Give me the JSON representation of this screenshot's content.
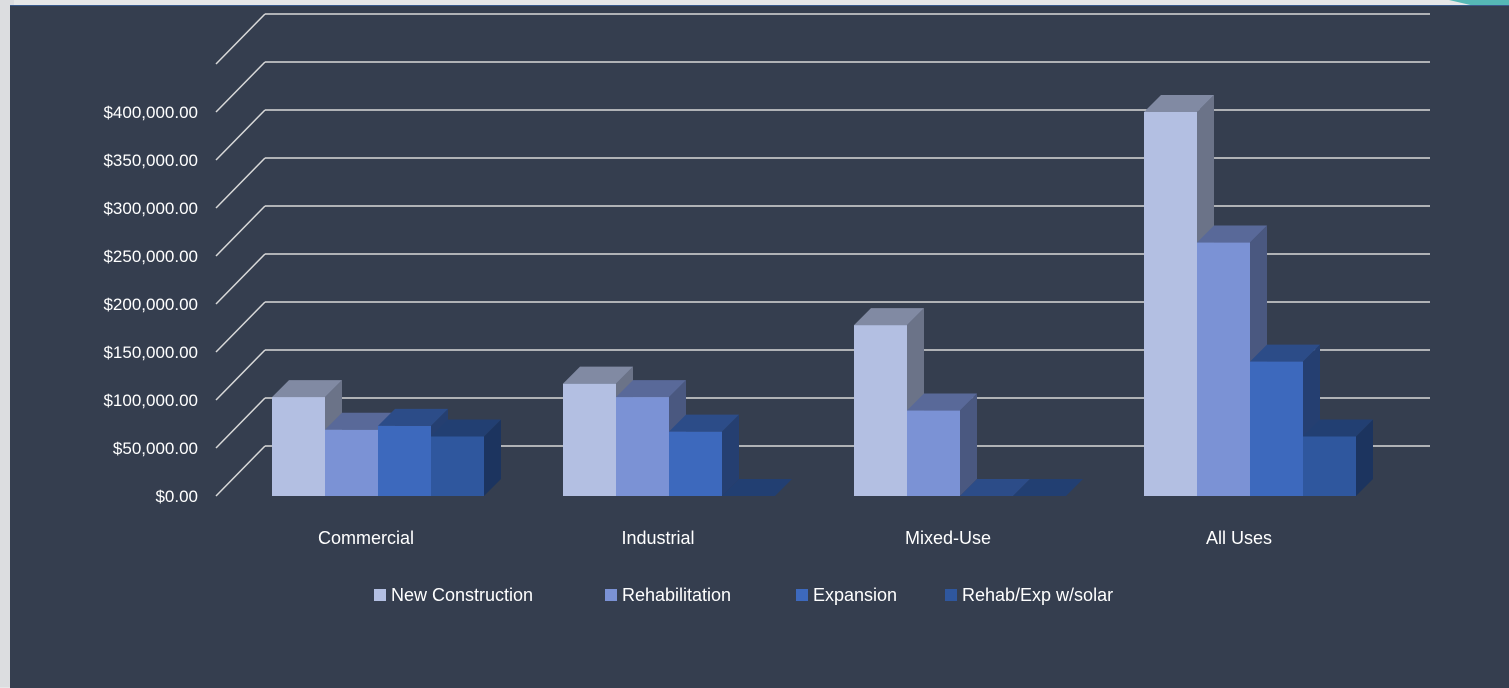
{
  "chart_data": {
    "type": "bar",
    "categories": [
      "Commercial",
      "Industrial",
      "Mixed-Use",
      "All Uses"
    ],
    "series": [
      {
        "name": "New Construction",
        "values": [
          103000,
          117000,
          178000,
          400000
        ]
      },
      {
        "name": "Rehabilitation",
        "values": [
          69000,
          103000,
          89000,
          264000
        ]
      },
      {
        "name": "Expansion",
        "values": [
          73000,
          67000,
          0,
          140000
        ]
      },
      {
        "name": "Rehab/Exp w/solar",
        "values": [
          62000,
          0,
          0,
          62000
        ]
      }
    ],
    "y_tick_labels": [
      "$0.00",
      "$50,000.00",
      "$100,000.00",
      "$150,000.00",
      "$200,000.00",
      "$250,000.00",
      "$300,000.00",
      "$350,000.00",
      "$400,000.00"
    ],
    "ylim": [
      0,
      450000
    ],
    "grid": true,
    "legend_position": "bottom",
    "colors": {
      "New Construction": "#b3bfe2",
      "Rehabilitation": "#7b92d5",
      "Expansion": "#3d69bd",
      "Rehab/Exp w/solar": "#2f579e",
      "background": "#353e4f",
      "gridline": "#d9d9d9"
    }
  }
}
